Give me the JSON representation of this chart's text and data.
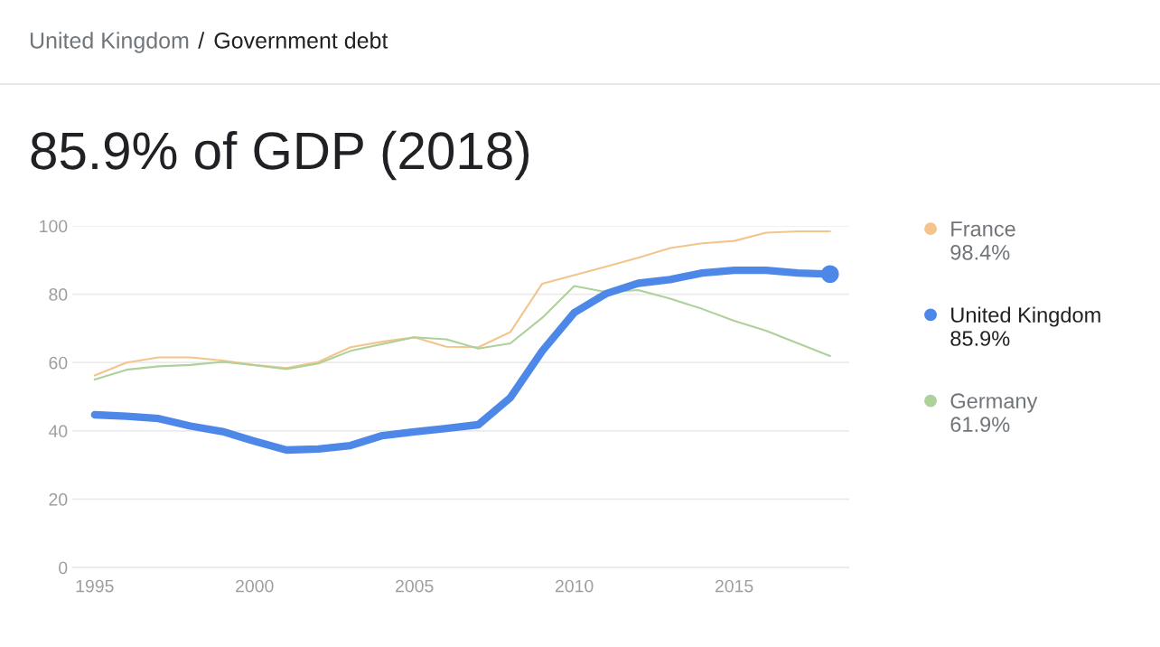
{
  "chart_data": {
    "type": "line",
    "title": "85.9% of GDP (2018)",
    "annotations": [
      "United Kingdom",
      "/",
      "Government debt",
      "98.4%",
      "85.9%",
      "61.9%"
    ],
    "x": [
      1995,
      1996,
      1997,
      1998,
      1999,
      2000,
      2001,
      2002,
      2003,
      2004,
      2005,
      2006,
      2007,
      2008,
      2009,
      2010,
      2011,
      2012,
      2013,
      2014,
      2015,
      2016,
      2017,
      2018
    ],
    "series": [
      {
        "name": "France",
        "color": "#f4c48c",
        "values": [
          56.2,
          60.0,
          61.5,
          61.5,
          60.6,
          59.3,
          58.4,
          60.2,
          64.5,
          66.1,
          67.4,
          64.6,
          64.5,
          68.9,
          83.1,
          85.6,
          88.1,
          90.7,
          93.5,
          94.9,
          95.6,
          98.0,
          98.4,
          98.4
        ]
      },
      {
        "name": "United Kingdom",
        "color": "#4d88e8",
        "values": [
          44.7,
          44.3,
          43.6,
          41.4,
          39.8,
          37.0,
          34.4,
          34.7,
          35.7,
          38.6,
          39.7,
          40.7,
          41.8,
          49.7,
          63.4,
          74.6,
          80.2,
          83.2,
          84.3,
          86.2,
          87.0,
          87.0,
          86.2,
          85.9
        ]
      },
      {
        "name": "Germany",
        "color": "#aed09a",
        "values": [
          55.0,
          57.9,
          58.9,
          59.3,
          60.2,
          59.2,
          58.1,
          59.7,
          63.4,
          65.4,
          67.4,
          66.8,
          64.1,
          65.6,
          73.1,
          82.4,
          80.6,
          81.2,
          78.7,
          75.7,
          72.2,
          69.3,
          65.6,
          61.9
        ]
      },
      {
        "type": "scatter",
        "color": "#4d88e8",
        "x": [
          2018
        ],
        "values": [
          85.9
        ]
      }
    ],
    "xlim": [
      1994.3,
      2018.6
    ],
    "xticks": [
      1995,
      2000,
      2005,
      2010,
      2015
    ],
    "ylim": [
      0,
      100
    ],
    "yticks": [
      0,
      20,
      40,
      60,
      80,
      100
    ],
    "grid": "y",
    "legend": "right"
  }
}
